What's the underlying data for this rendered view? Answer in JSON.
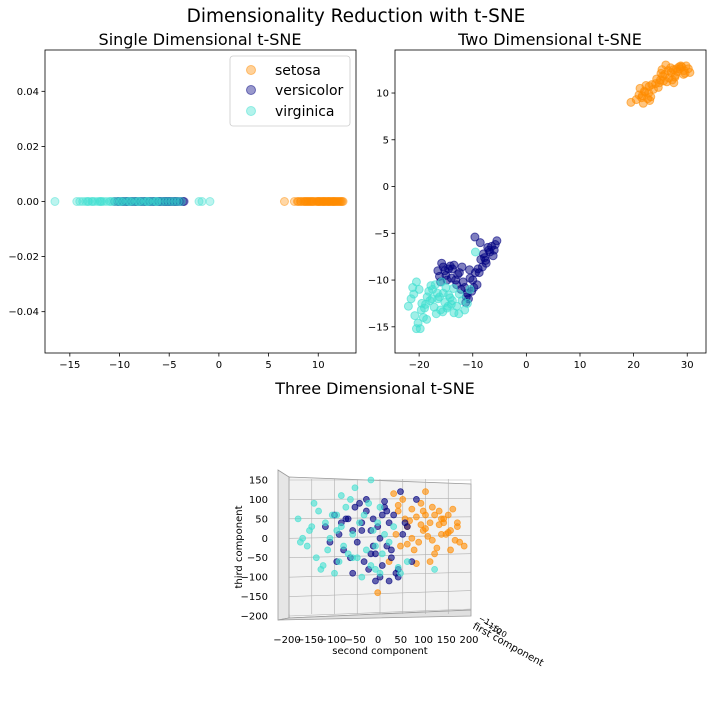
{
  "figure": {
    "title": "Dimensionality Reduction with t-SNE"
  },
  "colors": {
    "setosa": "#ff8c00",
    "versicolor": "#000080",
    "virginica": "#40e0d0"
  },
  "chart_data": [
    {
      "id": "one-d",
      "type": "scatter",
      "title": "Single Dimensional t-SNE",
      "xlabel": "",
      "ylabel": "",
      "xlim": [
        -17.5,
        13.8
      ],
      "ylim": [
        -0.055,
        0.055
      ],
      "xticks": [
        -15,
        -10,
        -5,
        0,
        5,
        10
      ],
      "yticks": [
        0.04,
        0.02,
        0.0,
        -0.02,
        -0.04
      ],
      "ytick_labels": [
        "0.04",
        "0.02",
        "0.00",
        "−0.02",
        "−0.04"
      ],
      "grid": false,
      "legend": {
        "placement": "top-right",
        "entries": [
          "setosa",
          "versicolor",
          "virginica"
        ]
      },
      "series": [
        {
          "name": "setosa",
          "color": "#ff8c00",
          "x": [
            6.6,
            7.6,
            7.9,
            8.0,
            8.2,
            8.3,
            8.5,
            8.6,
            8.7,
            8.9,
            9.0,
            9.1,
            9.3,
            9.4,
            9.5,
            9.6,
            9.8,
            9.9,
            10.0,
            10.1,
            10.2,
            10.3,
            10.4,
            10.5,
            10.6,
            10.7,
            10.8,
            10.9,
            11.0,
            11.1,
            11.2,
            11.3,
            11.4,
            11.5,
            11.6,
            11.7,
            11.8,
            11.9,
            12.0,
            12.1,
            12.2,
            12.3,
            12.4,
            12.5,
            10.05,
            10.55,
            11.05,
            11.55,
            9.2,
            8.8
          ],
          "y": [
            0,
            0,
            0,
            0,
            0,
            0,
            0,
            0,
            0,
            0,
            0,
            0,
            0,
            0,
            0,
            0,
            0,
            0,
            0,
            0,
            0,
            0,
            0,
            0,
            0,
            0,
            0,
            0,
            0,
            0,
            0,
            0,
            0,
            0,
            0,
            0,
            0,
            0,
            0,
            0,
            0,
            0,
            0,
            0,
            0,
            0,
            0,
            0,
            0,
            0
          ]
        },
        {
          "name": "versicolor",
          "color": "#000080",
          "x": [
            -10.5,
            -10.2,
            -9.9,
            -9.6,
            -9.3,
            -9.0,
            -8.7,
            -8.4,
            -8.1,
            -7.8,
            -7.5,
            -7.2,
            -6.9,
            -6.6,
            -6.3,
            -6.0,
            -5.8,
            -5.6,
            -5.4,
            -5.2,
            -5.0,
            -4.8,
            -4.6,
            -4.4,
            -4.2,
            -4.0,
            -3.8,
            -3.6,
            -5.1,
            -5.5,
            -6.1,
            -6.5,
            -7.0,
            -7.4,
            -7.9,
            -8.3,
            -8.8,
            -9.2,
            -9.7,
            -10.1,
            -4.9,
            -4.3,
            -5.3,
            -5.9,
            -6.7,
            -7.6,
            -8.5,
            -9.4,
            -3.5,
            -4.5
          ],
          "y": [
            0,
            0,
            0,
            0,
            0,
            0,
            0,
            0,
            0,
            0,
            0,
            0,
            0,
            0,
            0,
            0,
            0,
            0,
            0,
            0,
            0,
            0,
            0,
            0,
            0,
            0,
            0,
            0,
            0,
            0,
            0,
            0,
            0,
            0,
            0,
            0,
            0,
            0,
            0,
            0,
            0,
            0,
            0,
            0,
            0,
            0,
            0,
            0,
            0,
            0
          ]
        },
        {
          "name": "virginica",
          "color": "#40e0d0",
          "x": [
            -16.5,
            -14.3,
            -14.0,
            -13.7,
            -13.4,
            -13.1,
            -12.8,
            -12.5,
            -12.2,
            -11.9,
            -11.6,
            -11.3,
            -11.0,
            -10.7,
            -10.4,
            -10.1,
            -9.8,
            -9.5,
            -9.2,
            -8.9,
            -8.6,
            -8.3,
            -8.0,
            -7.7,
            -7.4,
            -7.1,
            -6.8,
            -6.5,
            -6.2,
            -5.9,
            -5.6,
            -5.3,
            -5.0,
            -4.7,
            -4.4,
            -4.1,
            -3.8,
            -2.0,
            -1.7,
            -0.9,
            -13.2,
            -12.7,
            -11.8,
            -10.9,
            -9.9,
            -9.0,
            -8.1,
            -7.2,
            -6.3,
            -12.0
          ],
          "y": [
            0,
            0,
            0,
            0,
            0,
            0,
            0,
            0,
            0,
            0,
            0,
            0,
            0,
            0,
            0,
            0,
            0,
            0,
            0,
            0,
            0,
            0,
            0,
            0,
            0,
            0,
            0,
            0,
            0,
            0,
            0,
            0,
            0,
            0,
            0,
            0,
            0,
            0,
            0,
            0,
            0,
            0,
            0,
            0,
            0,
            0,
            0,
            0,
            0,
            0
          ]
        }
      ]
    },
    {
      "id": "two-d",
      "type": "scatter",
      "title": "Two Dimensional t-SNE",
      "xlabel": "",
      "ylabel": "",
      "xlim": [
        -24.5,
        33.5
      ],
      "ylim": [
        -17.8,
        14.6
      ],
      "xticks": [
        -20,
        -10,
        0,
        10,
        20,
        30
      ],
      "yticks": [
        10,
        5,
        0,
        -5,
        -10,
        -15
      ],
      "ytick_labels": [
        "10",
        "5",
        "0",
        "−5",
        "−10",
        "−15"
      ],
      "grid": false,
      "series": [
        {
          "name": "setosa",
          "color": "#ff8c00",
          "x": [
            19.5,
            20.5,
            21.0,
            21.5,
            22.0,
            22.3,
            22.8,
            23.2,
            23.7,
            24.1,
            24.6,
            25.0,
            25.4,
            25.8,
            26.2,
            26.6,
            27.0,
            27.4,
            27.8,
            28.2,
            28.6,
            29.0,
            29.4,
            29.8,
            30.2,
            30.5,
            21.8,
            22.6,
            23.4,
            24.3,
            25.1,
            26.0,
            26.9,
            27.7,
            28.5,
            29.3,
            21.2,
            22.1,
            23.0,
            24.8,
            25.6,
            26.4,
            27.2,
            28.0,
            28.8,
            29.6,
            22.9,
            25.3,
            27.5,
            21.6
          ],
          "y": [
            9.0,
            9.3,
            9.8,
            9.5,
            10.2,
            10.8,
            10.0,
            9.6,
            10.4,
            11.0,
            10.6,
            11.4,
            11.8,
            12.0,
            11.2,
            11.6,
            12.2,
            12.5,
            11.9,
            12.3,
            12.6,
            12.8,
            12.4,
            12.9,
            12.6,
            12.2,
            8.9,
            9.4,
            10.9,
            11.5,
            12.1,
            13.0,
            12.7,
            11.7,
            12.8,
            12.0,
            10.5,
            10.1,
            9.2,
            11.1,
            11.3,
            12.4,
            11.4,
            12.6,
            12.9,
            12.1,
            10.7,
            12.5,
            11.1,
            9.7
          ]
        },
        {
          "name": "versicolor",
          "color": "#000080",
          "x": [
            -16.5,
            -16.0,
            -15.5,
            -15.0,
            -14.5,
            -14.0,
            -13.5,
            -13.0,
            -12.5,
            -12.0,
            -11.5,
            -11.0,
            -10.5,
            -10.0,
            -9.5,
            -9.0,
            -8.5,
            -8.0,
            -7.5,
            -7.0,
            -6.5,
            -6.0,
            -5.5,
            -15.8,
            -15.2,
            -14.2,
            -13.2,
            -12.2,
            -11.2,
            -10.2,
            -9.2,
            -8.2,
            -7.2,
            -6.2,
            -14.8,
            -13.8,
            -12.8,
            -11.8,
            -10.8,
            -9.8,
            -8.8,
            -7.8,
            -6.8,
            -5.8,
            -16.2,
            -11.3,
            -10.6,
            -9.6,
            -8.6,
            -7.6
          ],
          "y": [
            -9.0,
            -10.2,
            -8.6,
            -9.5,
            -8.8,
            -9.8,
            -8.4,
            -10.5,
            -9.2,
            -8.6,
            -10.8,
            -11.4,
            -9.8,
            -10.0,
            -9.2,
            -8.8,
            -7.8,
            -7.2,
            -8.2,
            -6.8,
            -6.4,
            -6.8,
            -5.8,
            -8.2,
            -9.0,
            -8.5,
            -10.0,
            -11.0,
            -11.8,
            -11.2,
            -10.5,
            -8.6,
            -6.5,
            -7.4,
            -10.0,
            -8.8,
            -9.4,
            -10.2,
            -12.0,
            -10.8,
            -9.2,
            -7.6,
            -7.0,
            -6.2,
            -9.6,
            -12.4,
            -8.9,
            -5.4,
            -6.0,
            -7.9
          ]
        },
        {
          "name": "virginica",
          "color": "#40e0d0",
          "x": [
            -22.0,
            -21.5,
            -21.0,
            -20.5,
            -20.0,
            -19.5,
            -19.0,
            -18.5,
            -18.0,
            -17.5,
            -17.0,
            -16.5,
            -16.0,
            -15.5,
            -15.0,
            -14.5,
            -14.0,
            -13.5,
            -13.0,
            -12.5,
            -12.0,
            -11.5,
            -11.0,
            -10.5,
            -20.8,
            -20.2,
            -19.8,
            -19.2,
            -18.8,
            -18.2,
            -17.8,
            -17.2,
            -16.8,
            -16.2,
            -15.8,
            -15.2,
            -14.8,
            -14.2,
            -13.8,
            -21.2,
            -20.5,
            -19.6,
            -18.6,
            -17.6,
            -16.6,
            -15.6,
            -14.6,
            -13.6,
            -12.6,
            -9.5
          ],
          "y": [
            -12.8,
            -12.0,
            -11.5,
            -10.2,
            -11.0,
            -12.5,
            -13.0,
            -11.8,
            -12.2,
            -11.0,
            -10.5,
            -12.0,
            -13.2,
            -11.4,
            -10.8,
            -11.6,
            -12.6,
            -13.5,
            -12.8,
            -11.5,
            -12.2,
            -13.2,
            -12.5,
            -11.0,
            -13.8,
            -14.6,
            -15.2,
            -14.0,
            -12.6,
            -11.2,
            -10.6,
            -12.9,
            -13.6,
            -11.8,
            -10.2,
            -12.4,
            -13.0,
            -11.9,
            -12.2,
            -10.8,
            -15.2,
            -13.2,
            -14.2,
            -12.0,
            -11.4,
            -13.4,
            -12.8,
            -10.9,
            -13.6,
            -7.0
          ]
        }
      ]
    },
    {
      "id": "three-d",
      "type": "scatter",
      "title": "Three Dimensional t-SNE",
      "xlabel": "second component",
      "ylabel": "third component",
      "zlabel": "first component",
      "xlim": [
        -200,
        200
      ],
      "ylim": [
        -200,
        150
      ],
      "xticks": [
        -200,
        -150,
        -100,
        -50,
        0,
        50,
        100,
        150,
        200
      ],
      "xtick_labels": [
        "−200",
        "−150",
        "−100",
        "−50",
        "0",
        "50",
        "100",
        "150",
        "200"
      ],
      "yticks": [
        150,
        100,
        50,
        0,
        -50,
        -100,
        -150,
        -200
      ],
      "ytick_labels": [
        "150",
        "100",
        "50",
        "0",
        "−50",
        "−100",
        "−150",
        "−200"
      ],
      "grid": true,
      "series": [
        {
          "name": "setosa",
          "color": "#ff8c00",
          "x": [
            -5,
            20,
            40,
            55,
            60,
            70,
            80,
            90,
            100,
            110,
            115,
            120,
            130,
            135,
            140,
            150,
            155,
            160,
            170,
            175,
            35,
            45,
            65,
            75,
            85,
            95,
            105,
            125,
            145,
            165,
            50,
            100,
            120,
            60,
            90,
            140,
            70,
            110,
            130,
            155,
            30,
            80,
            95,
            115,
            150,
            170,
            40,
            135,
            185,
            100
          ],
          "y": [
            -140,
            -60,
            70,
            50,
            30,
            75,
            55,
            90,
            60,
            40,
            80,
            60,
            70,
            50,
            40,
            60,
            20,
            75,
            40,
            -10,
            10,
            -20,
            45,
            -30,
            -10,
            20,
            5,
            -25,
            10,
            -5,
            100,
            25,
            -40,
            -15,
            35,
            50,
            0,
            -60,
            35,
            -30,
            115,
            -65,
            70,
            -5,
            15,
            30,
            85,
            10,
            -20,
            120
          ]
        },
        {
          "name": "versicolor",
          "color": "#000080",
          "x": [
            -120,
            -100,
            -90,
            -80,
            -70,
            -60,
            -50,
            -45,
            -40,
            -35,
            -30,
            -25,
            -20,
            -15,
            -10,
            -5,
            0,
            5,
            10,
            15,
            20,
            25,
            30,
            40,
            50,
            60,
            80,
            -110,
            -85,
            -65,
            -55,
            -30,
            -15,
            0,
            15,
            35,
            45,
            70,
            -75,
            -20,
            -10,
            5,
            25,
            55,
            -95,
            -40,
            10,
            40,
            -60,
            20
          ],
          "y": [
            30,
            60,
            10,
            -30,
            50,
            20,
            -10,
            90,
            40,
            -60,
            70,
            -80,
            20,
            50,
            -40,
            30,
            0,
            -70,
            80,
            -20,
            40,
            -50,
            60,
            -80,
            10,
            30,
            100,
            -10,
            40,
            -50,
            80,
            100,
            -20,
            -100,
            70,
            -90,
            120,
            -60,
            50,
            -40,
            -110,
            60,
            -30,
            40,
            -60,
            20,
            95,
            -100,
            -90,
            -110
          ]
        },
        {
          "name": "virginica",
          "color": "#40e0d0",
          "x": [
            -180,
            -170,
            -160,
            -150,
            -140,
            -135,
            -130,
            -120,
            -115,
            -110,
            -105,
            -100,
            -95,
            -90,
            -85,
            -80,
            -75,
            -70,
            -65,
            -60,
            -55,
            -50,
            -45,
            -40,
            -35,
            -30,
            -25,
            -20,
            -15,
            -10,
            -5,
            0,
            5,
            10,
            20,
            -175,
            -145,
            -125,
            -95,
            -60,
            -10,
            30,
            45,
            60,
            -155,
            -85,
            0,
            40,
            120,
            -20
          ],
          "y": [
            50,
            0,
            -20,
            30,
            -50,
            70,
            -80,
            40,
            -30,
            0,
            60,
            -90,
            20,
            -60,
            30,
            -20,
            80,
            -40,
            100,
            10,
            130,
            -50,
            40,
            -100,
            60,
            -30,
            90,
            -70,
            20,
            -20,
            40,
            -90,
            -40,
            10,
            -10,
            -10,
            90,
            -70,
            60,
            -50,
            -80,
            30,
            -90,
            -60,
            20,
            110,
            80,
            -75,
            -80,
            150
          ]
        }
      ]
    }
  ]
}
